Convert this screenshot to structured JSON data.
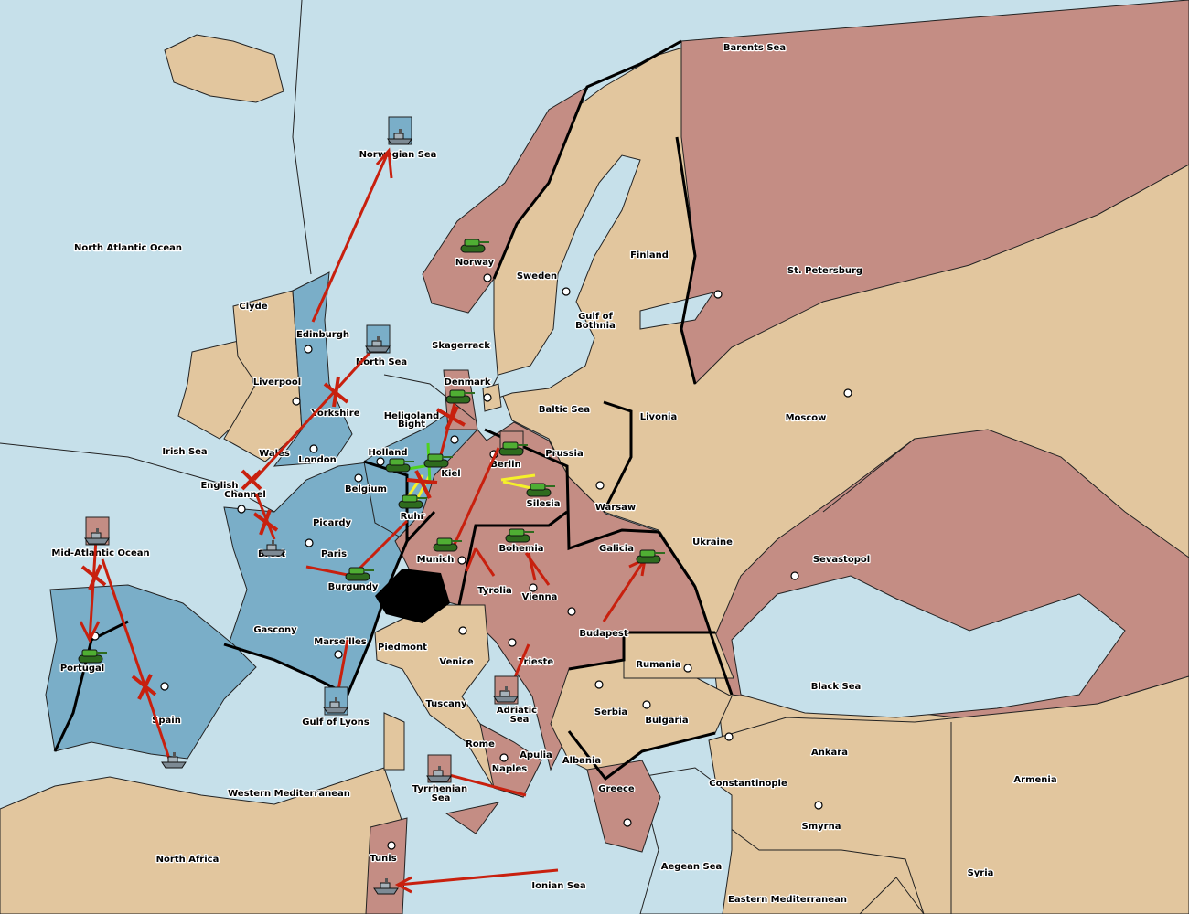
{
  "colors": {
    "sea": "#c6e0ea",
    "england_france": "#7aaec8",
    "germany_russia": "#c48d84",
    "neutral": "#e2c69e",
    "order": "#c8200e",
    "support": "#f5f02a",
    "convoy": "#4fd21e",
    "army": "#3c9a2a"
  },
  "labels": [
    "Barents Sea",
    "Norwegian Sea",
    "North Atlantic Ocean",
    "Clyde",
    "Edinburgh",
    "North Sea",
    "Liverpool",
    "Yorkshire",
    "Wales",
    "London",
    "Irish Sea",
    "English",
    "Channel",
    "Holland",
    "Belgium",
    "Heligoland",
    "Bight",
    "Kiel",
    "Ruhr",
    "Denmark",
    "Skagerrack",
    "Norway",
    "Sweden",
    "Finland",
    "St. Petersburg",
    "Gulf of",
    "Bothnia",
    "Baltic Sea",
    "Livonia",
    "Moscow",
    "Berlin",
    "Prussia",
    "Silesia",
    "Warsaw",
    "Ukraine",
    "Sevastopol",
    "Galicia",
    "Bohemia",
    "Munich",
    "Picardy",
    "Paris",
    "Brest",
    "Mid-Atlantic Ocean",
    "Burgundy",
    "Tyrolia",
    "Vienna",
    "Budapest",
    "Gascony",
    "Marseilles",
    "Piedmont",
    "Venice",
    "Trieste",
    "Rumania",
    "Black Sea",
    "Portugal",
    "Spain",
    "Gulf of Lyons",
    "Tuscany",
    "Adriatic",
    "Sea",
    "Serbia",
    "Bulgaria",
    "Rome",
    "Apulia",
    "Albania",
    "Naples",
    "Ankara",
    "Armenia",
    "Constantinople",
    "Tyrrhenian",
    "Sea",
    "Greece",
    "Western Mediterranean",
    "Smyrna",
    "North Africa",
    "Tunis",
    "Aegean Sea",
    "Syria",
    "Ionian Sea",
    "Eastern Mediterranean"
  ]
}
